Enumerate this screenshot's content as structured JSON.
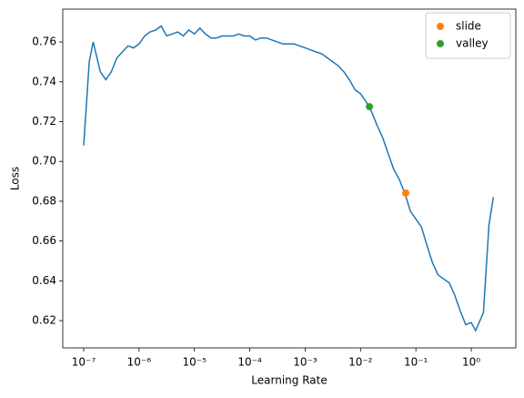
{
  "chart_data": {
    "type": "line",
    "xlabel": "Learning Rate",
    "ylabel": "Loss",
    "xscale": "log",
    "xlim": [
      4.19e-08,
      6.38
    ],
    "ylim": [
      0.6063,
      0.7765
    ],
    "xticks": [
      {
        "value": 1e-07,
        "label": "10⁻⁷"
      },
      {
        "value": 1e-06,
        "label": "10⁻⁶"
      },
      {
        "value": 1e-05,
        "label": "10⁻⁵"
      },
      {
        "value": 0.0001,
        "label": "10⁻⁴"
      },
      {
        "value": 0.001,
        "label": "10⁻³"
      },
      {
        "value": 0.01,
        "label": "10⁻²"
      },
      {
        "value": 0.1,
        "label": "10⁻¹"
      },
      {
        "value": 1,
        "label": "10⁰"
      }
    ],
    "yticks": [
      0.62,
      0.64,
      0.66,
      0.68,
      {
        "value": 0.7,
        "label": "0.70"
      },
      0.72,
      0.74,
      0.76
    ],
    "legend": "upper right",
    "series": [
      {
        "color": "#1f77b4",
        "style": "line",
        "x": [
          1e-07,
          1.26e-07,
          1.48e-07,
          2e-07,
          2.51e-07,
          3.16e-07,
          3.98e-07,
          5.01e-07,
          6.31e-07,
          7.94e-07,
          1e-06,
          1.26e-06,
          1.58e-06,
          2e-06,
          2.51e-06,
          3.16e-06,
          3.98e-06,
          5.01e-06,
          6.31e-06,
          7.94e-06,
          1e-05,
          1.26e-05,
          1.58e-05,
          2e-05,
          2.51e-05,
          3.16e-05,
          3.98e-05,
          5.01e-05,
          6.31e-05,
          7.94e-05,
          0.0001,
          0.000126,
          0.000158,
          0.0002,
          0.000251,
          0.000316,
          0.000398,
          0.000501,
          0.000631,
          0.000794,
          0.001,
          0.00126,
          0.00158,
          0.002,
          0.00251,
          0.00316,
          0.00398,
          0.00501,
          0.00631,
          0.00794,
          0.01,
          0.0126,
          0.0158,
          0.02,
          0.0251,
          0.0316,
          0.0398,
          0.0501,
          0.0631,
          0.0794,
          0.1,
          0.126,
          0.158,
          0.2,
          0.251,
          0.316,
          0.398,
          0.501,
          0.631,
          0.794,
          1,
          1.2,
          1.66,
          2.09,
          2.51
        ],
        "values": [
          0.708,
          0.75,
          0.76,
          0.745,
          0.741,
          0.745,
          0.752,
          0.755,
          0.758,
          0.757,
          0.759,
          0.763,
          0.765,
          0.766,
          0.768,
          0.763,
          0.764,
          0.765,
          0.763,
          0.766,
          0.764,
          0.767,
          0.764,
          0.762,
          0.762,
          0.763,
          0.763,
          0.763,
          0.764,
          0.763,
          0.763,
          0.761,
          0.762,
          0.762,
          0.761,
          0.76,
          0.759,
          0.759,
          0.759,
          0.758,
          0.757,
          0.756,
          0.755,
          0.754,
          0.752,
          0.75,
          0.748,
          0.745,
          0.741,
          0.736,
          0.734,
          0.73,
          0.725,
          0.718,
          0.712,
          0.704,
          0.696,
          0.691,
          0.684,
          0.675,
          0.671,
          0.667,
          0.658,
          0.649,
          0.643,
          0.641,
          0.639,
          0.633,
          0.625,
          0.618,
          0.619,
          0.615,
          0.624,
          0.668,
          0.682
        ]
      },
      {
        "name": "slide",
        "color": "#ff7f0e",
        "style": "marker",
        "x": [
          0.0656
        ],
        "values": [
          0.6841
        ]
      },
      {
        "name": "valley",
        "color": "#2ca02c",
        "style": "marker",
        "x": [
          0.0145
        ],
        "values": [
          0.7275
        ]
      }
    ]
  }
}
